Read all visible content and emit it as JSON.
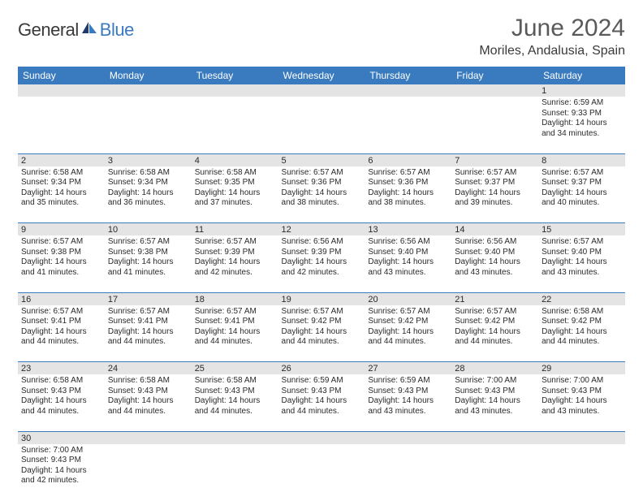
{
  "logo": {
    "text1": "General",
    "text2": "Blue"
  },
  "title": "June 2024",
  "location": "Moriles, Andalusia, Spain",
  "colors": {
    "header_bg": "#3a7bbf",
    "header_text": "#ffffff",
    "num_bg": "#e4e4e4",
    "border": "#3a7bbf"
  },
  "day_headers": [
    "Sunday",
    "Monday",
    "Tuesday",
    "Wednesday",
    "Thursday",
    "Friday",
    "Saturday"
  ],
  "weeks": [
    [
      null,
      null,
      null,
      null,
      null,
      null,
      {
        "n": "1",
        "sunrise": "Sunrise: 6:59 AM",
        "sunset": "Sunset: 9:33 PM",
        "day1": "Daylight: 14 hours",
        "day2": "and 34 minutes."
      }
    ],
    [
      {
        "n": "2",
        "sunrise": "Sunrise: 6:58 AM",
        "sunset": "Sunset: 9:34 PM",
        "day1": "Daylight: 14 hours",
        "day2": "and 35 minutes."
      },
      {
        "n": "3",
        "sunrise": "Sunrise: 6:58 AM",
        "sunset": "Sunset: 9:34 PM",
        "day1": "Daylight: 14 hours",
        "day2": "and 36 minutes."
      },
      {
        "n": "4",
        "sunrise": "Sunrise: 6:58 AM",
        "sunset": "Sunset: 9:35 PM",
        "day1": "Daylight: 14 hours",
        "day2": "and 37 minutes."
      },
      {
        "n": "5",
        "sunrise": "Sunrise: 6:57 AM",
        "sunset": "Sunset: 9:36 PM",
        "day1": "Daylight: 14 hours",
        "day2": "and 38 minutes."
      },
      {
        "n": "6",
        "sunrise": "Sunrise: 6:57 AM",
        "sunset": "Sunset: 9:36 PM",
        "day1": "Daylight: 14 hours",
        "day2": "and 38 minutes."
      },
      {
        "n": "7",
        "sunrise": "Sunrise: 6:57 AM",
        "sunset": "Sunset: 9:37 PM",
        "day1": "Daylight: 14 hours",
        "day2": "and 39 minutes."
      },
      {
        "n": "8",
        "sunrise": "Sunrise: 6:57 AM",
        "sunset": "Sunset: 9:37 PM",
        "day1": "Daylight: 14 hours",
        "day2": "and 40 minutes."
      }
    ],
    [
      {
        "n": "9",
        "sunrise": "Sunrise: 6:57 AM",
        "sunset": "Sunset: 9:38 PM",
        "day1": "Daylight: 14 hours",
        "day2": "and 41 minutes."
      },
      {
        "n": "10",
        "sunrise": "Sunrise: 6:57 AM",
        "sunset": "Sunset: 9:38 PM",
        "day1": "Daylight: 14 hours",
        "day2": "and 41 minutes."
      },
      {
        "n": "11",
        "sunrise": "Sunrise: 6:57 AM",
        "sunset": "Sunset: 9:39 PM",
        "day1": "Daylight: 14 hours",
        "day2": "and 42 minutes."
      },
      {
        "n": "12",
        "sunrise": "Sunrise: 6:56 AM",
        "sunset": "Sunset: 9:39 PM",
        "day1": "Daylight: 14 hours",
        "day2": "and 42 minutes."
      },
      {
        "n": "13",
        "sunrise": "Sunrise: 6:56 AM",
        "sunset": "Sunset: 9:40 PM",
        "day1": "Daylight: 14 hours",
        "day2": "and 43 minutes."
      },
      {
        "n": "14",
        "sunrise": "Sunrise: 6:56 AM",
        "sunset": "Sunset: 9:40 PM",
        "day1": "Daylight: 14 hours",
        "day2": "and 43 minutes."
      },
      {
        "n": "15",
        "sunrise": "Sunrise: 6:57 AM",
        "sunset": "Sunset: 9:40 PM",
        "day1": "Daylight: 14 hours",
        "day2": "and 43 minutes."
      }
    ],
    [
      {
        "n": "16",
        "sunrise": "Sunrise: 6:57 AM",
        "sunset": "Sunset: 9:41 PM",
        "day1": "Daylight: 14 hours",
        "day2": "and 44 minutes."
      },
      {
        "n": "17",
        "sunrise": "Sunrise: 6:57 AM",
        "sunset": "Sunset: 9:41 PM",
        "day1": "Daylight: 14 hours",
        "day2": "and 44 minutes."
      },
      {
        "n": "18",
        "sunrise": "Sunrise: 6:57 AM",
        "sunset": "Sunset: 9:41 PM",
        "day1": "Daylight: 14 hours",
        "day2": "and 44 minutes."
      },
      {
        "n": "19",
        "sunrise": "Sunrise: 6:57 AM",
        "sunset": "Sunset: 9:42 PM",
        "day1": "Daylight: 14 hours",
        "day2": "and 44 minutes."
      },
      {
        "n": "20",
        "sunrise": "Sunrise: 6:57 AM",
        "sunset": "Sunset: 9:42 PM",
        "day1": "Daylight: 14 hours",
        "day2": "and 44 minutes."
      },
      {
        "n": "21",
        "sunrise": "Sunrise: 6:57 AM",
        "sunset": "Sunset: 9:42 PM",
        "day1": "Daylight: 14 hours",
        "day2": "and 44 minutes."
      },
      {
        "n": "22",
        "sunrise": "Sunrise: 6:58 AM",
        "sunset": "Sunset: 9:42 PM",
        "day1": "Daylight: 14 hours",
        "day2": "and 44 minutes."
      }
    ],
    [
      {
        "n": "23",
        "sunrise": "Sunrise: 6:58 AM",
        "sunset": "Sunset: 9:43 PM",
        "day1": "Daylight: 14 hours",
        "day2": "and 44 minutes."
      },
      {
        "n": "24",
        "sunrise": "Sunrise: 6:58 AM",
        "sunset": "Sunset: 9:43 PM",
        "day1": "Daylight: 14 hours",
        "day2": "and 44 minutes."
      },
      {
        "n": "25",
        "sunrise": "Sunrise: 6:58 AM",
        "sunset": "Sunset: 9:43 PM",
        "day1": "Daylight: 14 hours",
        "day2": "and 44 minutes."
      },
      {
        "n": "26",
        "sunrise": "Sunrise: 6:59 AM",
        "sunset": "Sunset: 9:43 PM",
        "day1": "Daylight: 14 hours",
        "day2": "and 44 minutes."
      },
      {
        "n": "27",
        "sunrise": "Sunrise: 6:59 AM",
        "sunset": "Sunset: 9:43 PM",
        "day1": "Daylight: 14 hours",
        "day2": "and 43 minutes."
      },
      {
        "n": "28",
        "sunrise": "Sunrise: 7:00 AM",
        "sunset": "Sunset: 9:43 PM",
        "day1": "Daylight: 14 hours",
        "day2": "and 43 minutes."
      },
      {
        "n": "29",
        "sunrise": "Sunrise: 7:00 AM",
        "sunset": "Sunset: 9:43 PM",
        "day1": "Daylight: 14 hours",
        "day2": "and 43 minutes."
      }
    ],
    [
      {
        "n": "30",
        "sunrise": "Sunrise: 7:00 AM",
        "sunset": "Sunset: 9:43 PM",
        "day1": "Daylight: 14 hours",
        "day2": "and 42 minutes."
      },
      null,
      null,
      null,
      null,
      null,
      null
    ]
  ]
}
